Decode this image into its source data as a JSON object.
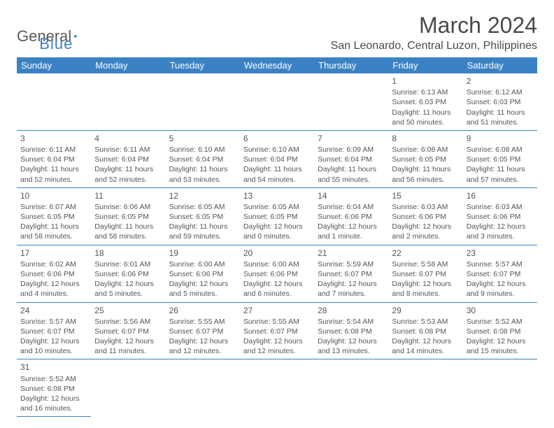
{
  "logo": {
    "general": "General",
    "blue": "Blue"
  },
  "title": "March 2024",
  "location": "San Leonardo, Central Luzon, Philippines",
  "colors": {
    "header_bg": "#3b82c4",
    "header_text": "#ffffff",
    "border": "#3b82c4",
    "text": "#4a4a4a"
  },
  "days_of_week": [
    "Sunday",
    "Monday",
    "Tuesday",
    "Wednesday",
    "Thursday",
    "Friday",
    "Saturday"
  ],
  "weeks": [
    [
      null,
      null,
      null,
      null,
      null,
      {
        "n": "1",
        "sr": "Sunrise: 6:13 AM",
        "ss": "Sunset: 6:03 PM",
        "dl": "Daylight: 11 hours and 50 minutes."
      },
      {
        "n": "2",
        "sr": "Sunrise: 6:12 AM",
        "ss": "Sunset: 6:03 PM",
        "dl": "Daylight: 11 hours and 51 minutes."
      }
    ],
    [
      {
        "n": "3",
        "sr": "Sunrise: 6:11 AM",
        "ss": "Sunset: 6:04 PM",
        "dl": "Daylight: 11 hours and 52 minutes."
      },
      {
        "n": "4",
        "sr": "Sunrise: 6:11 AM",
        "ss": "Sunset: 6:04 PM",
        "dl": "Daylight: 11 hours and 52 minutes."
      },
      {
        "n": "5",
        "sr": "Sunrise: 6:10 AM",
        "ss": "Sunset: 6:04 PM",
        "dl": "Daylight: 11 hours and 53 minutes."
      },
      {
        "n": "6",
        "sr": "Sunrise: 6:10 AM",
        "ss": "Sunset: 6:04 PM",
        "dl": "Daylight: 11 hours and 54 minutes."
      },
      {
        "n": "7",
        "sr": "Sunrise: 6:09 AM",
        "ss": "Sunset: 6:04 PM",
        "dl": "Daylight: 11 hours and 55 minutes."
      },
      {
        "n": "8",
        "sr": "Sunrise: 6:08 AM",
        "ss": "Sunset: 6:05 PM",
        "dl": "Daylight: 11 hours and 56 minutes."
      },
      {
        "n": "9",
        "sr": "Sunrise: 6:08 AM",
        "ss": "Sunset: 6:05 PM",
        "dl": "Daylight: 11 hours and 57 minutes."
      }
    ],
    [
      {
        "n": "10",
        "sr": "Sunrise: 6:07 AM",
        "ss": "Sunset: 6:05 PM",
        "dl": "Daylight: 11 hours and 58 minutes."
      },
      {
        "n": "11",
        "sr": "Sunrise: 6:06 AM",
        "ss": "Sunset: 6:05 PM",
        "dl": "Daylight: 11 hours and 58 minutes."
      },
      {
        "n": "12",
        "sr": "Sunrise: 6:05 AM",
        "ss": "Sunset: 6:05 PM",
        "dl": "Daylight: 11 hours and 59 minutes."
      },
      {
        "n": "13",
        "sr": "Sunrise: 6:05 AM",
        "ss": "Sunset: 6:05 PM",
        "dl": "Daylight: 12 hours and 0 minutes."
      },
      {
        "n": "14",
        "sr": "Sunrise: 6:04 AM",
        "ss": "Sunset: 6:06 PM",
        "dl": "Daylight: 12 hours and 1 minute."
      },
      {
        "n": "15",
        "sr": "Sunrise: 6:03 AM",
        "ss": "Sunset: 6:06 PM",
        "dl": "Daylight: 12 hours and 2 minutes."
      },
      {
        "n": "16",
        "sr": "Sunrise: 6:03 AM",
        "ss": "Sunset: 6:06 PM",
        "dl": "Daylight: 12 hours and 3 minutes."
      }
    ],
    [
      {
        "n": "17",
        "sr": "Sunrise: 6:02 AM",
        "ss": "Sunset: 6:06 PM",
        "dl": "Daylight: 12 hours and 4 minutes."
      },
      {
        "n": "18",
        "sr": "Sunrise: 6:01 AM",
        "ss": "Sunset: 6:06 PM",
        "dl": "Daylight: 12 hours and 5 minutes."
      },
      {
        "n": "19",
        "sr": "Sunrise: 6:00 AM",
        "ss": "Sunset: 6:06 PM",
        "dl": "Daylight: 12 hours and 5 minutes."
      },
      {
        "n": "20",
        "sr": "Sunrise: 6:00 AM",
        "ss": "Sunset: 6:06 PM",
        "dl": "Daylight: 12 hours and 6 minutes."
      },
      {
        "n": "21",
        "sr": "Sunrise: 5:59 AM",
        "ss": "Sunset: 6:07 PM",
        "dl": "Daylight: 12 hours and 7 minutes."
      },
      {
        "n": "22",
        "sr": "Sunrise: 5:58 AM",
        "ss": "Sunset: 6:07 PM",
        "dl": "Daylight: 12 hours and 8 minutes."
      },
      {
        "n": "23",
        "sr": "Sunrise: 5:57 AM",
        "ss": "Sunset: 6:07 PM",
        "dl": "Daylight: 12 hours and 9 minutes."
      }
    ],
    [
      {
        "n": "24",
        "sr": "Sunrise: 5:57 AM",
        "ss": "Sunset: 6:07 PM",
        "dl": "Daylight: 12 hours and 10 minutes."
      },
      {
        "n": "25",
        "sr": "Sunrise: 5:56 AM",
        "ss": "Sunset: 6:07 PM",
        "dl": "Daylight: 12 hours and 11 minutes."
      },
      {
        "n": "26",
        "sr": "Sunrise: 5:55 AM",
        "ss": "Sunset: 6:07 PM",
        "dl": "Daylight: 12 hours and 12 minutes."
      },
      {
        "n": "27",
        "sr": "Sunrise: 5:55 AM",
        "ss": "Sunset: 6:07 PM",
        "dl": "Daylight: 12 hours and 12 minutes."
      },
      {
        "n": "28",
        "sr": "Sunrise: 5:54 AM",
        "ss": "Sunset: 6:08 PM",
        "dl": "Daylight: 12 hours and 13 minutes."
      },
      {
        "n": "29",
        "sr": "Sunrise: 5:53 AM",
        "ss": "Sunset: 6:08 PM",
        "dl": "Daylight: 12 hours and 14 minutes."
      },
      {
        "n": "30",
        "sr": "Sunrise: 5:52 AM",
        "ss": "Sunset: 6:08 PM",
        "dl": "Daylight: 12 hours and 15 minutes."
      }
    ],
    [
      {
        "n": "31",
        "sr": "Sunrise: 5:52 AM",
        "ss": "Sunset: 6:08 PM",
        "dl": "Daylight: 12 hours and 16 minutes."
      },
      null,
      null,
      null,
      null,
      null,
      null
    ]
  ]
}
